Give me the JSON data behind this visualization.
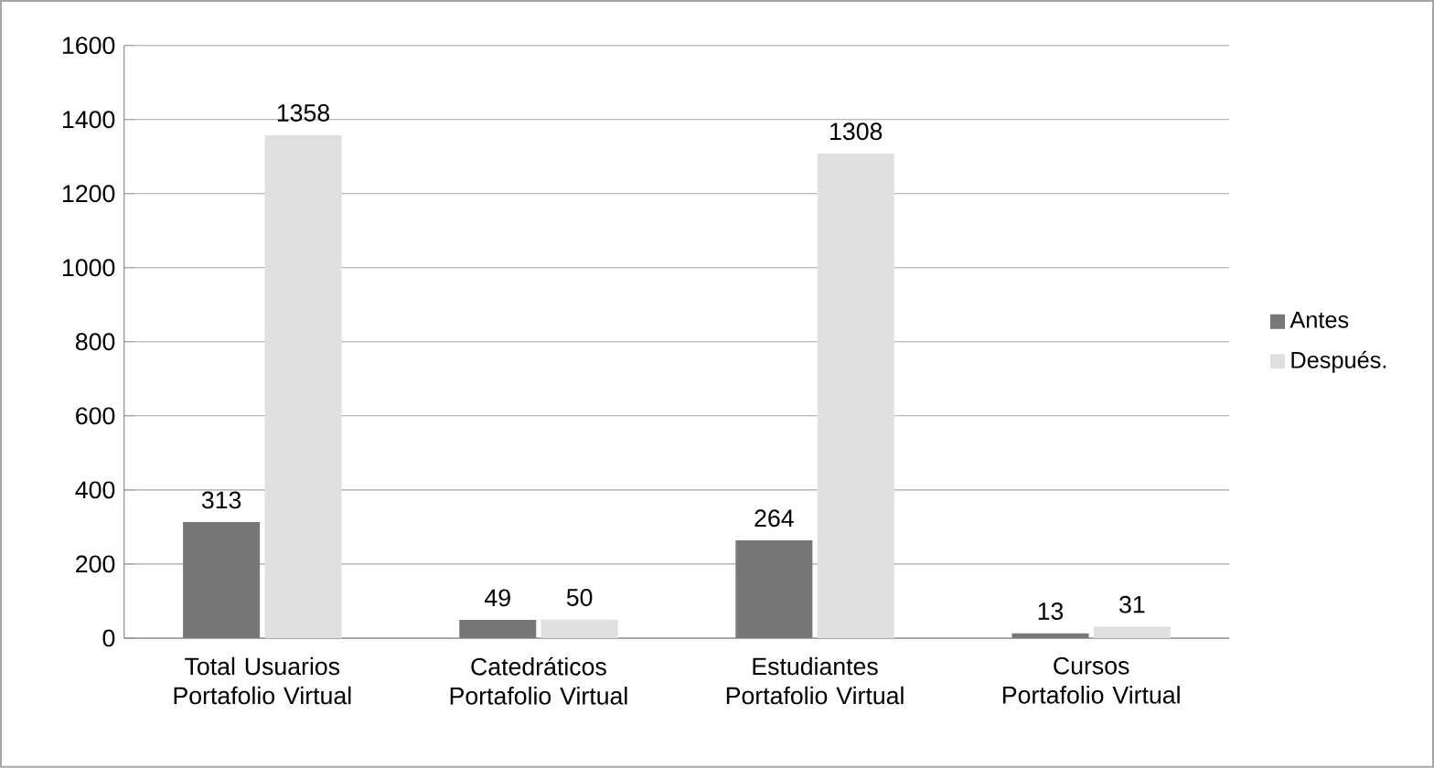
{
  "chart_data": {
    "type": "bar",
    "categories": [
      "Total Usuarios Portafolio Virtual",
      "Catedráticos Portafolio Virtual",
      "Estudiantes Portafolio Virtual",
      "Cursos Portafolio Virtual"
    ],
    "series": [
      {
        "name": "Antes",
        "color": "#777777",
        "values": [
          313,
          49,
          264,
          13
        ]
      },
      {
        "name": "Después.",
        "color": "#e0e0e0",
        "values": [
          1358,
          50,
          1308,
          31
        ]
      }
    ],
    "ylim": [
      0,
      1600
    ],
    "yticks": [
      0,
      200,
      400,
      600,
      800,
      1000,
      1200,
      1400,
      1600
    ],
    "grid": "y",
    "legend": "right",
    "data_labels": true
  }
}
